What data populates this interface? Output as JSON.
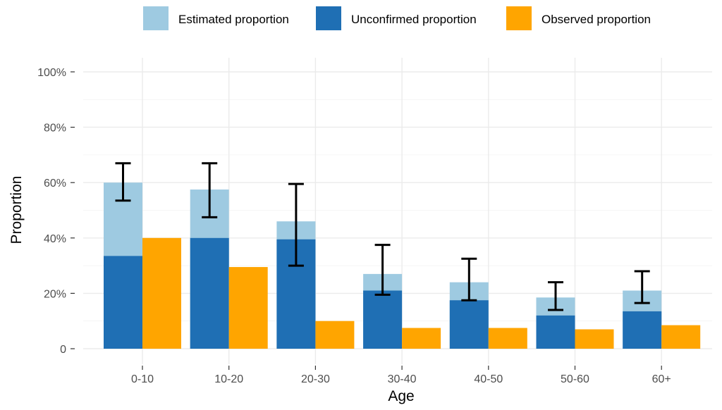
{
  "chart_data": {
    "type": "bar",
    "categories": [
      "0-10",
      "10-20",
      "20-30",
      "30-40",
      "40-50",
      "50-60",
      "60+"
    ],
    "series": [
      {
        "name": "Estimated proportion",
        "values": [
          60,
          57.5,
          46,
          27,
          24,
          18.5,
          21
        ],
        "color": "#9ecae1"
      },
      {
        "name": "Unconfirmed proportion",
        "values": [
          33.5,
          40,
          39.5,
          21,
          17.5,
          12,
          13.5
        ],
        "color": "#1f6fb4"
      },
      {
        "name": "Observed proportion",
        "values": [
          40,
          29.5,
          10,
          7.5,
          7.5,
          7,
          8.5
        ],
        "color": "#ffa500"
      }
    ],
    "error_bars": {
      "series": "Estimated proportion",
      "lower": [
        53.5,
        47.5,
        30,
        19.5,
        17.5,
        14,
        16.5
      ],
      "upper": [
        67,
        67,
        59.5,
        37.5,
        32.5,
        24,
        28
      ]
    },
    "xlabel": "Age",
    "ylabel": "Proportion",
    "ylim": [
      0,
      100
    ],
    "yticks": [
      0,
      20,
      40,
      60,
      80,
      100
    ],
    "ytick_labels": [
      "0",
      "20%",
      "40%",
      "60%",
      "80%",
      "100%"
    ],
    "grid": true,
    "legend": {
      "position": "top"
    }
  }
}
